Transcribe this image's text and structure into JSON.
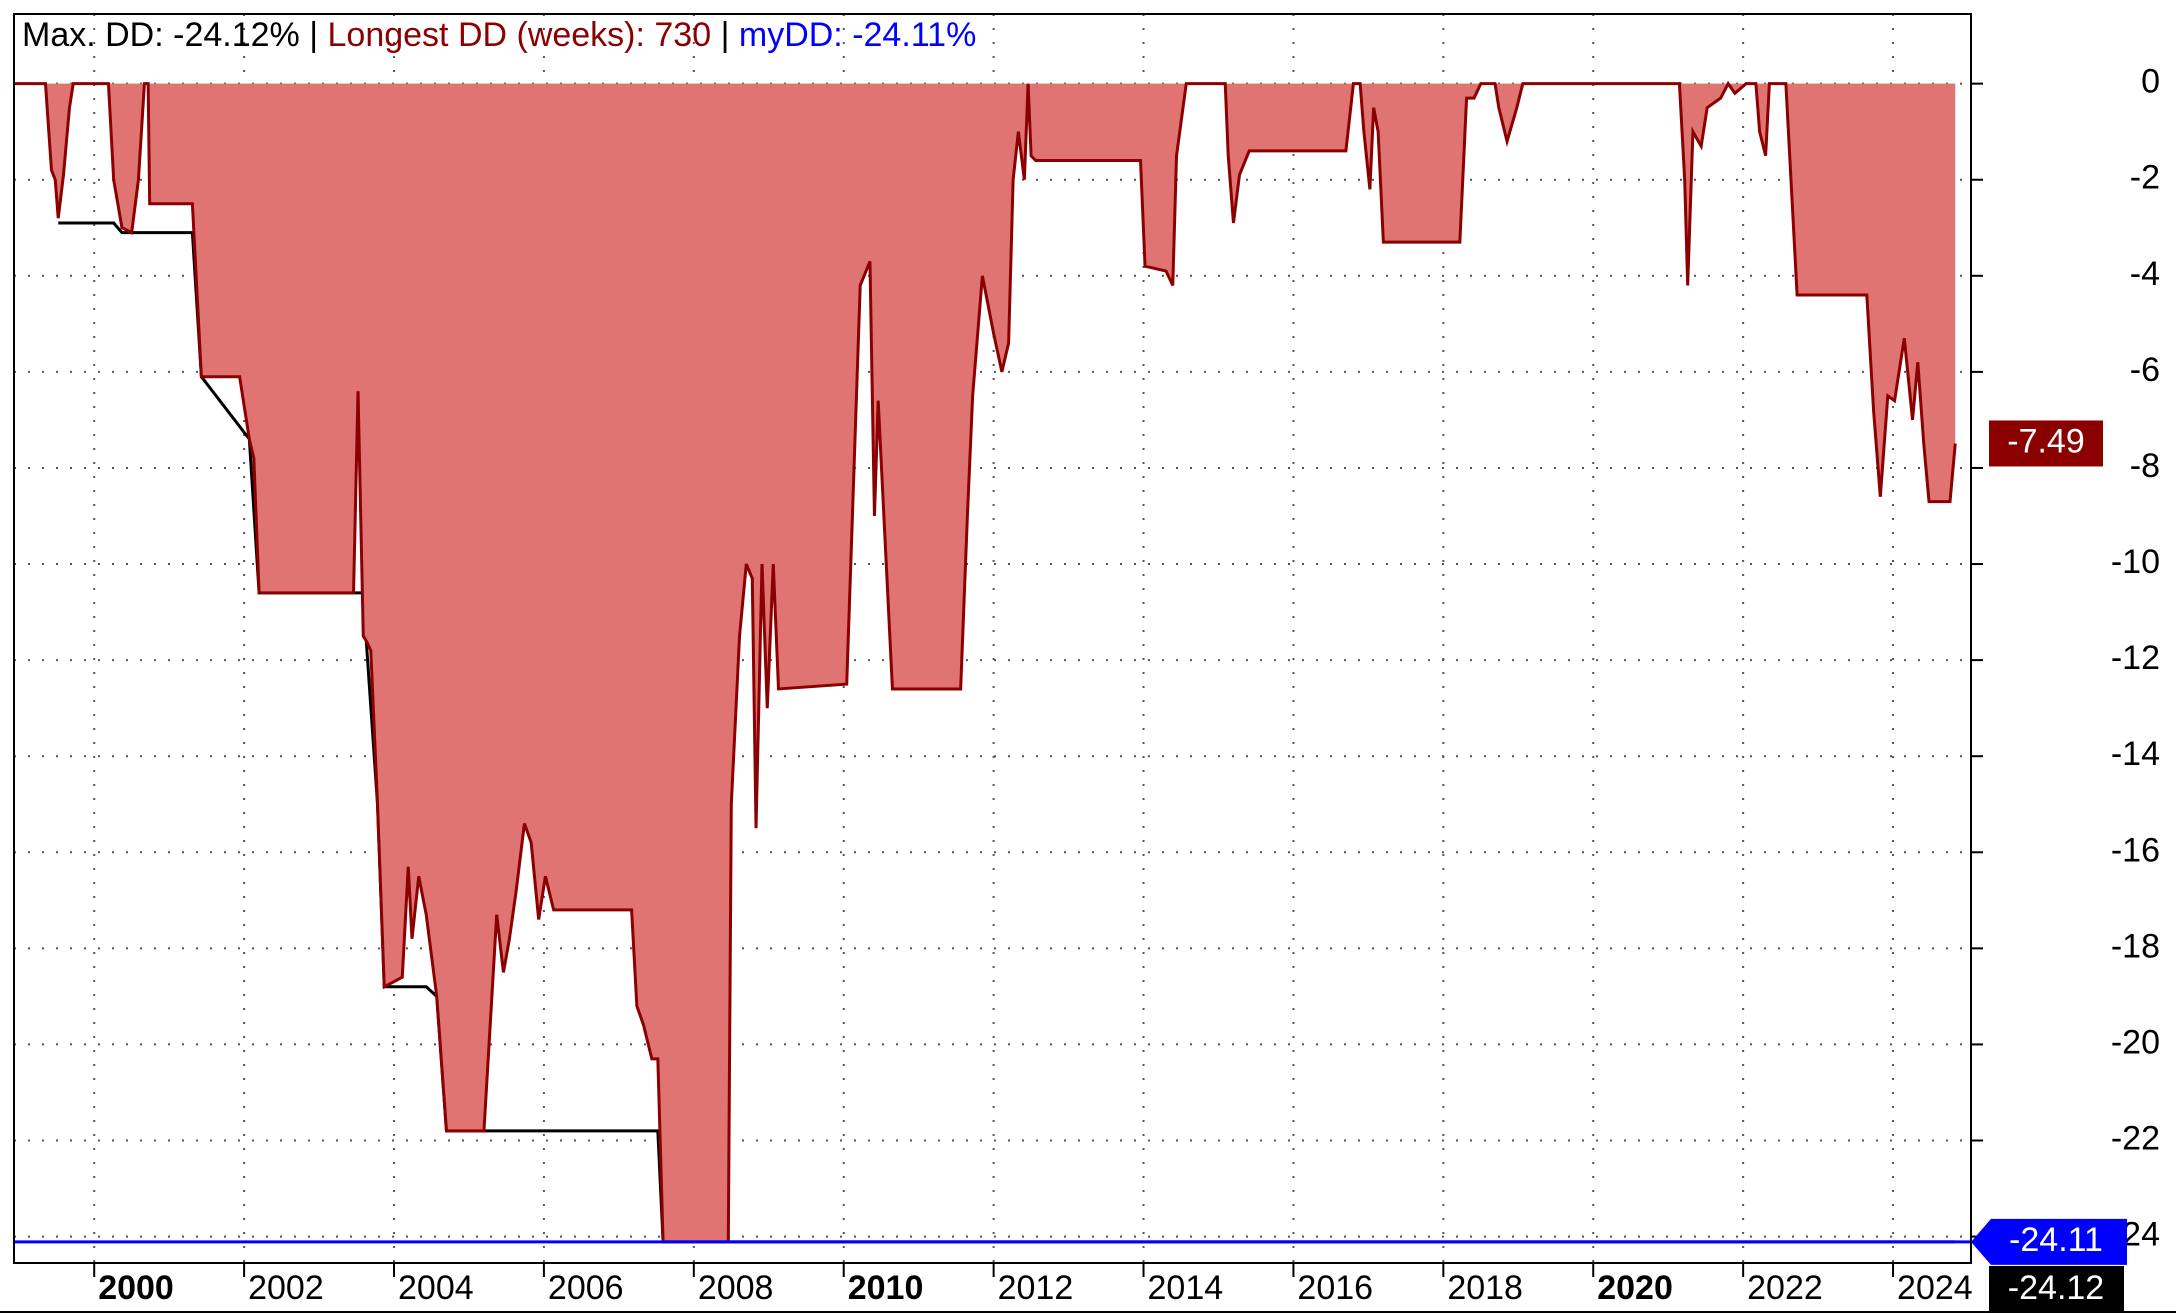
{
  "chart_data": {
    "type": "area",
    "title_parts": [
      {
        "text": "Max. DD: -24.12% | ",
        "color": "#000000"
      },
      {
        "text": "Longest DD (weeks): 730",
        "color": "#8b0000"
      },
      {
        "text": " | ",
        "color": "#000000"
      },
      {
        "text": "myDD: -24.11%",
        "color": "#0000ff"
      }
    ],
    "series": [
      {
        "color": "#8b0000",
        "fill": "#e07472",
        "x": [
          1998.93,
          1999.35,
          1999.43,
          1999.48,
          1999.52,
          1999.59,
          1999.67,
          1999.72,
          2000.19,
          2000.26,
          2000.37,
          2000.5,
          2000.59,
          2000.67,
          2000.72,
          2000.74,
          2001.31,
          2001.43,
          2001.94,
          2002.07,
          2002.13,
          2002.2,
          2003.46,
          2003.52,
          2003.59,
          2003.63,
          2003.69,
          2003.78,
          2003.87,
          2004.11,
          2004.19,
          2004.24,
          2004.33,
          2004.43,
          2004.57,
          2004.7,
          2005.2,
          2005.37,
          2005.46,
          2005.54,
          2005.63,
          2005.74,
          2005.83,
          2005.93,
          2006.02,
          2006.13,
          2007.17,
          2007.24,
          2007.33,
          2007.44,
          2007.52,
          2007.59,
          2008.46,
          2008.5,
          2008.61,
          2008.7,
          2008.78,
          2008.83,
          2008.91,
          2008.98,
          2009.06,
          2009.13,
          2010.04,
          2010.22,
          2010.35,
          2010.41,
          2010.46,
          2010.52,
          2010.65,
          2011.56,
          2011.65,
          2011.72,
          2011.85,
          2012.0,
          2012.11,
          2012.2,
          2012.26,
          2012.33,
          2012.41,
          2012.46,
          2012.5,
          2012.56,
          2013.96,
          2014.02,
          2014.3,
          2014.39,
          2014.44,
          2014.57,
          2015.09,
          2015.13,
          2015.2,
          2015.28,
          2015.41,
          2016.7,
          2016.8,
          2016.89,
          2016.94,
          2017.02,
          2017.07,
          2017.13,
          2017.2,
          2018.22,
          2018.31,
          2018.41,
          2018.5,
          2018.69,
          2018.74,
          2018.85,
          2018.98,
          2019.06,
          2021.15,
          2021.22,
          2021.26,
          2021.33,
          2021.44,
          2021.52,
          2021.7,
          2021.8,
          2021.89,
          2022.04,
          2022.17,
          2022.22,
          2022.3,
          2022.35,
          2022.57,
          2022.72,
          2023.65,
          2023.74,
          2023.83,
          2023.93,
          2024.02,
          2024.15,
          2024.26,
          2024.33,
          2024.41,
          2024.48,
          2024.76,
          2024.83
        ],
        "values": [
          0,
          0,
          -1.8,
          -2.0,
          -2.8,
          -1.9,
          -0.5,
          0,
          0,
          -2.0,
          -3.0,
          -3.1,
          -2.0,
          0,
          0,
          -2.5,
          -2.5,
          -6.1,
          -6.1,
          -7.4,
          -7.8,
          -10.6,
          -10.6,
          -6.4,
          -11.5,
          -11.6,
          -11.8,
          -15.0,
          -18.8,
          -18.6,
          -16.3,
          -17.8,
          -16.5,
          -17.3,
          -19.0,
          -21.8,
          -21.8,
          -17.3,
          -18.5,
          -17.8,
          -16.8,
          -15.4,
          -15.8,
          -17.4,
          -16.5,
          -17.2,
          -17.2,
          -19.2,
          -19.6,
          -20.3,
          -20.3,
          -24.11,
          -24.11,
          -15.0,
          -11.5,
          -10.0,
          -10.3,
          -15.5,
          -10.0,
          -13.0,
          -10.0,
          -12.6,
          -12.5,
          -4.2,
          -3.7,
          -9.0,
          -6.6,
          -8.5,
          -12.6,
          -12.6,
          -9.0,
          -6.5,
          -4.0,
          -5.2,
          -6.0,
          -5.4,
          -2.0,
          -1.0,
          -2.0,
          0,
          -1.5,
          -1.6,
          -1.6,
          -3.8,
          -3.9,
          -4.2,
          -1.5,
          0,
          0,
          -1.5,
          -2.9,
          -1.9,
          -1.4,
          -1.4,
          0,
          0,
          -1.0,
          -2.2,
          -0.5,
          -1.0,
          -3.3,
          -3.3,
          -0.3,
          -0.3,
          0,
          0,
          -0.5,
          -1.2,
          -0.5,
          0,
          0,
          -2.0,
          -4.2,
          -1.0,
          -1.3,
          -0.5,
          -0.3,
          0,
          -0.2,
          0,
          0,
          -1.0,
          -1.5,
          0,
          0,
          -4.4,
          -4.4,
          -6.8,
          -8.6,
          -6.5,
          -6.6,
          -5.3,
          -7.0,
          -5.8,
          -7.5,
          -8.7,
          -8.7,
          -7.49
        ]
      },
      {
        "color": "#000000",
        "x": [
          1999.52,
          2000.26,
          2000.37,
          2001.31,
          2001.43,
          2002.07,
          2002.2,
          2003.59,
          2003.63,
          2003.78,
          2003.87,
          2004.43,
          2004.57,
          2004.7,
          2007.52,
          2007.59,
          2024.83
        ],
        "values": [
          -2.9,
          -2.9,
          -3.1,
          -3.1,
          -6.1,
          -7.4,
          -10.6,
          -10.6,
          -11.6,
          -15.0,
          -18.8,
          -18.8,
          -19.0,
          -21.8,
          -21.8,
          -24.11,
          -24.11
        ]
      }
    ],
    "hline": {
      "value": -24.11,
      "color": "#0000ff"
    },
    "last_value_tag_color": "#8b0000",
    "min_tag": {
      "value": -24.12,
      "color": "#000000"
    },
    "xlim": [
      1998.93,
      2025.04
    ],
    "xticks": [
      2000,
      2002,
      2004,
      2006,
      2008,
      2010,
      2012,
      2014,
      2016,
      2018,
      2020,
      2022,
      2024
    ],
    "xticks_bold": [
      2000,
      2010,
      2020
    ],
    "ylim": [
      -24.55,
      1.45
    ],
    "yticks": [
      0,
      -2,
      -4,
      -6,
      -8,
      -10,
      -12,
      -14,
      -16,
      -18,
      -20,
      -22,
      -24
    ],
    "grid": true
  }
}
